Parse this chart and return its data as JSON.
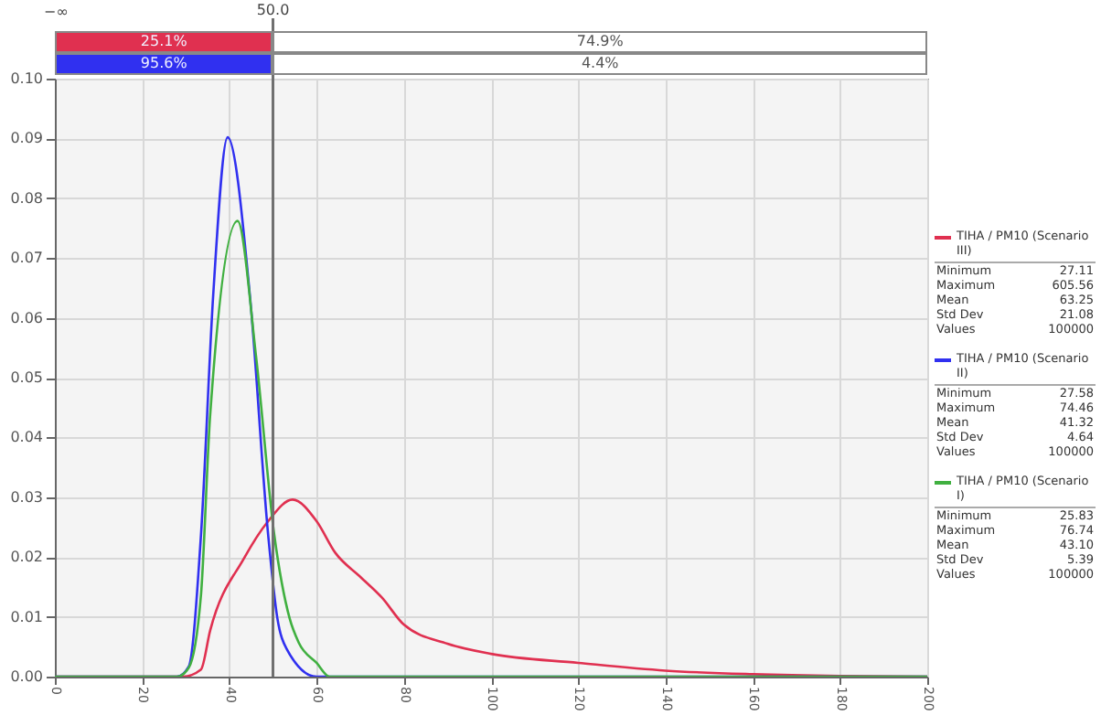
{
  "chart_data": {
    "type": "line",
    "xlim": [
      0,
      200
    ],
    "xticks": [
      0,
      20,
      40,
      60,
      80,
      100,
      120,
      140,
      160,
      180,
      200
    ],
    "ylim": [
      0,
      0.1
    ],
    "yticks": [
      {
        "value": 0,
        "label": "0.00"
      },
      {
        "value": 0.01,
        "label": "0.01"
      },
      {
        "value": 0.02,
        "label": "0.02"
      },
      {
        "value": 0.03,
        "label": "0.03"
      },
      {
        "value": 0.04,
        "label": "0.04"
      },
      {
        "value": 0.05,
        "label": "0.05"
      },
      {
        "value": 0.06,
        "label": "0.06"
      },
      {
        "value": 0.07,
        "label": "0.07"
      },
      {
        "value": 0.08,
        "label": "0.08"
      },
      {
        "value": 0.09,
        "label": "0.09"
      },
      {
        "value": 0.1,
        "label": "0.10"
      }
    ],
    "grid": true,
    "legend": "right",
    "marker": "none",
    "line_style": "solid",
    "series": [
      {
        "name": "TIHA / PM10 (Scenario III)",
        "color": "#e03050",
        "x": [
          0,
          29.4,
          33.5,
          35.6,
          43.3,
          48.9,
          54.5,
          60,
          64.3,
          70,
          75,
          80,
          90,
          100,
          120,
          140,
          160,
          180,
          200
        ],
        "values": [
          0,
          0,
          0.0012,
          0.0077,
          0.0197,
          0.026,
          0.0296,
          0.026,
          0.0207,
          0.0167,
          0.0132,
          0.0087,
          0.0055,
          0.0038,
          0.0023,
          0.001,
          0.0004,
          0.0001,
          0
        ]
      },
      {
        "name": "TIHA / PM10 (Scenario II)",
        "color": "#3030f0",
        "x": [
          0,
          28,
          30.7,
          33.5,
          36.3,
          39.6,
          44.7,
          48.9,
          51,
          53.1,
          60,
          200
        ],
        "values": [
          0,
          0,
          0.0017,
          0.0237,
          0.0638,
          0.0902,
          0.0638,
          0.0237,
          0.0098,
          0.0047,
          0,
          0
        ]
      },
      {
        "name": "TIHA / PM10 (Scenario I)",
        "color": "#40b040",
        "x": [
          0,
          28,
          30.7,
          33.5,
          35.6,
          41.9,
          46.1,
          50.3,
          53.8,
          55.9,
          60,
          63,
          200
        ],
        "values": [
          0,
          0,
          0.0015,
          0.0137,
          0.0437,
          0.0762,
          0.0537,
          0.0237,
          0.0098,
          0.0057,
          0.0023,
          0,
          0
        ]
      }
    ],
    "ref_lines": [
      {
        "axis": "x",
        "value": 50,
        "label": "50.0",
        "color": "#707070"
      }
    ],
    "annotations": [
      "−∞",
      "25.1%",
      "74.9%",
      "95.6%",
      "4.4%",
      "Minimum 27.11",
      "Maximum 605.56",
      "Mean 63.25",
      "Std Dev 21.08",
      "Values 100000",
      "Minimum 27.58",
      "Maximum 74.46",
      "Mean 41.32",
      "Std Dev 4.64",
      "Values 100000",
      "Minimum 25.83",
      "Maximum 76.74",
      "Mean 43.10",
      "Std Dev 5.39",
      "Values 100000"
    ]
  }
}
